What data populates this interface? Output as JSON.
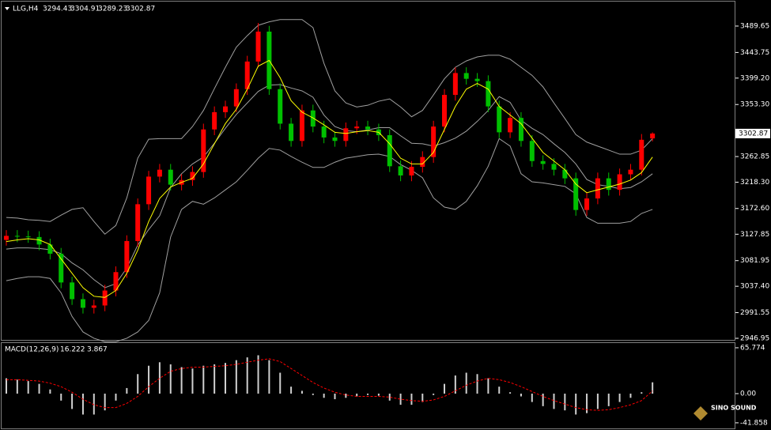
{
  "chart_data": [
    {
      "type": "candlestick",
      "title": "LLG,H4",
      "open": [
        3118,
        3125,
        3124,
        3123,
        3110,
        3094,
        3044,
        3015,
        3000,
        3004,
        3030,
        3062,
        3116,
        3180,
        3228,
        3240,
        3214,
        3222,
        3236,
        3310,
        3340,
        3350,
        3380,
        3428,
        3480,
        3380,
        3320,
        3290,
        3343,
        3315,
        3296,
        3290,
        3312,
        3315,
        3310,
        3300,
        3246,
        3230,
        3245,
        3262,
        3315,
        3370,
        3408,
        3398,
        3394,
        3350,
        3305,
        3330,
        3290,
        3255,
        3250,
        3240,
        3225,
        3170,
        3190,
        3225,
        3205,
        3232,
        3240,
        3294.43
      ],
      "high": [
        3135,
        3135,
        3134,
        3133,
        3120,
        3104,
        3054,
        3025,
        3014,
        3040,
        3072,
        3126,
        3190,
        3238,
        3250,
        3250,
        3232,
        3246,
        3320,
        3350,
        3360,
        3390,
        3438,
        3495,
        3490,
        3390,
        3330,
        3353,
        3353,
        3325,
        3306,
        3322,
        3325,
        3325,
        3320,
        3310,
        3256,
        3255,
        3272,
        3325,
        3380,
        3418,
        3418,
        3408,
        3404,
        3360,
        3340,
        3340,
        3300,
        3265,
        3260,
        3250,
        3235,
        3200,
        3235,
        3235,
        3242,
        3250,
        3302,
        3304.91
      ],
      "low": [
        3108,
        3114,
        3113,
        3100,
        3084,
        3034,
        3005,
        2990,
        2990,
        2994,
        3020,
        3052,
        3106,
        3170,
        3218,
        3204,
        3204,
        3212,
        3226,
        3300,
        3330,
        3340,
        3370,
        3418,
        3370,
        3310,
        3280,
        3280,
        3305,
        3286,
        3280,
        3280,
        3302,
        3300,
        3290,
        3236,
        3220,
        3220,
        3235,
        3252,
        3305,
        3360,
        3388,
        3384,
        3340,
        3295,
        3295,
        3280,
        3245,
        3240,
        3230,
        3215,
        3160,
        3160,
        3180,
        3195,
        3195,
        3222,
        3230,
        3289.23
      ],
      "close": [
        3125,
        3124,
        3123,
        3110,
        3094,
        3044,
        3015,
        3000,
        3004,
        3030,
        3062,
        3116,
        3180,
        3228,
        3240,
        3214,
        3222,
        3236,
        3310,
        3340,
        3350,
        3380,
        3428,
        3480,
        3380,
        3320,
        3290,
        3343,
        3315,
        3296,
        3290,
        3312,
        3315,
        3310,
        3300,
        3246,
        3230,
        3245,
        3262,
        3315,
        3370,
        3408,
        3398,
        3394,
        3350,
        3305,
        3330,
        3290,
        3255,
        3250,
        3240,
        3225,
        3170,
        3190,
        3225,
        3205,
        3232,
        3240,
        3292,
        3302.87
      ],
      "up_color": "#ff0000",
      "down_color": "#00c000",
      "bands": {
        "color": "#a0a0a0",
        "upper": [
          3157,
          3156,
          3153,
          3152,
          3150,
          3161,
          3171,
          3174,
          3150,
          3128,
          3143,
          3191,
          3260,
          3293,
          3294,
          3294,
          3294,
          3315,
          3343,
          3381,
          3418,
          3453,
          3473,
          3491,
          3497,
          3501,
          3501,
          3501,
          3487,
          3425,
          3377,
          3356,
          3349,
          3352,
          3359,
          3363,
          3349,
          3332,
          3343,
          3370,
          3398,
          3418,
          3429,
          3436,
          3439,
          3439,
          3432,
          3418,
          3404,
          3384,
          3356,
          3329,
          3301,
          3288,
          3281,
          3274,
          3267,
          3267,
          3274,
          3294
        ],
        "middle": [
          3102,
          3104,
          3104,
          3103,
          3101,
          3094,
          3078,
          3066,
          3049,
          3035,
          3042,
          3069,
          3109,
          3136,
          3160,
          3209,
          3233,
          3250,
          3262,
          3286,
          3312,
          3336,
          3356,
          3376,
          3387,
          3388,
          3382,
          3377,
          3366,
          3335,
          3315,
          3308,
          3306,
          3309,
          3313,
          3313,
          3299,
          3286,
          3285,
          3281,
          3287,
          3295,
          3307,
          3324,
          3343,
          3367,
          3357,
          3326,
          3312,
          3301,
          3285,
          3270,
          3250,
          3223,
          3214,
          3211,
          3207,
          3209,
          3219,
          3233
        ],
        "lower": [
          3047,
          3051,
          3054,
          3054,
          3051,
          3026,
          2985,
          2958,
          2947,
          2941,
          2941,
          2947,
          2958,
          2978,
          3026,
          3123,
          3171,
          3185,
          3180,
          3191,
          3205,
          3219,
          3239,
          3260,
          3277,
          3274,
          3263,
          3253,
          3244,
          3244,
          3253,
          3260,
          3263,
          3266,
          3267,
          3263,
          3249,
          3239,
          3226,
          3191,
          3175,
          3171,
          3185,
          3212,
          3246,
          3294,
          3281,
          3233,
          3219,
          3217,
          3214,
          3211,
          3198,
          3157,
          3147,
          3147,
          3147,
          3150,
          3164,
          3171
        ]
      },
      "ma": {
        "color": "#ffff00",
        "values": [
          3115,
          3118,
          3120,
          3118,
          3110,
          3085,
          3060,
          3035,
          3020,
          3018,
          3030,
          3060,
          3100,
          3150,
          3190,
          3210,
          3218,
          3225,
          3250,
          3285,
          3320,
          3345,
          3380,
          3420,
          3430,
          3400,
          3360,
          3340,
          3330,
          3318,
          3305,
          3303,
          3306,
          3308,
          3305,
          3285,
          3260,
          3250,
          3250,
          3270,
          3310,
          3350,
          3380,
          3390,
          3380,
          3350,
          3335,
          3320,
          3295,
          3270,
          3255,
          3240,
          3215,
          3200,
          3205,
          3210,
          3215,
          3222,
          3235,
          3262
        ]
      },
      "ylim": [
        2944.2,
        3532.2
      ],
      "yticks": [
        3489.65,
        3443.75,
        {
          "value": 3399.2,
          "label": "3399.20"
        },
        {
          "value": 3353.3,
          "label": "3353.30"
        },
        3262.85,
        {
          "value": 3218.3,
          "label": "3218.30"
        },
        {
          "value": 3172.6,
          "label": "3172.60"
        },
        3127.85,
        3081.95,
        {
          "value": 3037.4,
          "label": "3037.40"
        },
        2991.55,
        2946.95
      ]
    },
    {
      "type": "macd",
      "title": "MACD(12,26,9)",
      "values": [
        22,
        20,
        18,
        14,
        6,
        -10,
        -22,
        -30,
        -30,
        -24,
        -10,
        8,
        28,
        40,
        45,
        42,
        38,
        36,
        40,
        42,
        44,
        48,
        52,
        55,
        48,
        30,
        10,
        4,
        -2,
        -6,
        -8,
        -6,
        -4,
        -2,
        -3,
        -10,
        -16,
        -16,
        -12,
        -2,
        14,
        26,
        30,
        28,
        22,
        10,
        2,
        -4,
        -12,
        -18,
        -22,
        -24,
        -30,
        -28,
        -22,
        -18,
        -12,
        -6,
        2,
        16.222
      ],
      "color": "#d0d0d0",
      "signal": {
        "color": "#ff0000",
        "values": [
          20,
          20,
          19,
          18,
          15,
          10,
          2,
          -8,
          -16,
          -20,
          -20,
          -14,
          -4,
          10,
          22,
          32,
          36,
          38,
          38,
          39,
          40,
          42,
          45,
          48,
          50,
          46,
          36,
          26,
          16,
          8,
          2,
          -2,
          -4,
          -4,
          -4,
          -5,
          -8,
          -10,
          -11,
          -9,
          -4,
          4,
          12,
          18,
          22,
          20,
          16,
          10,
          3,
          -4,
          -10,
          -15,
          -20,
          -23,
          -24,
          -23,
          -20,
          -16,
          -10,
          3.867
        ]
      },
      "ylim": [
        -49.9,
        71.4
      ],
      "yticks": [
        65.774,
        {
          "value": 0,
          "label": "0.00"
        },
        -41.858
      ]
    }
  ],
  "logo": {
    "name": "SINO SOUND"
  }
}
